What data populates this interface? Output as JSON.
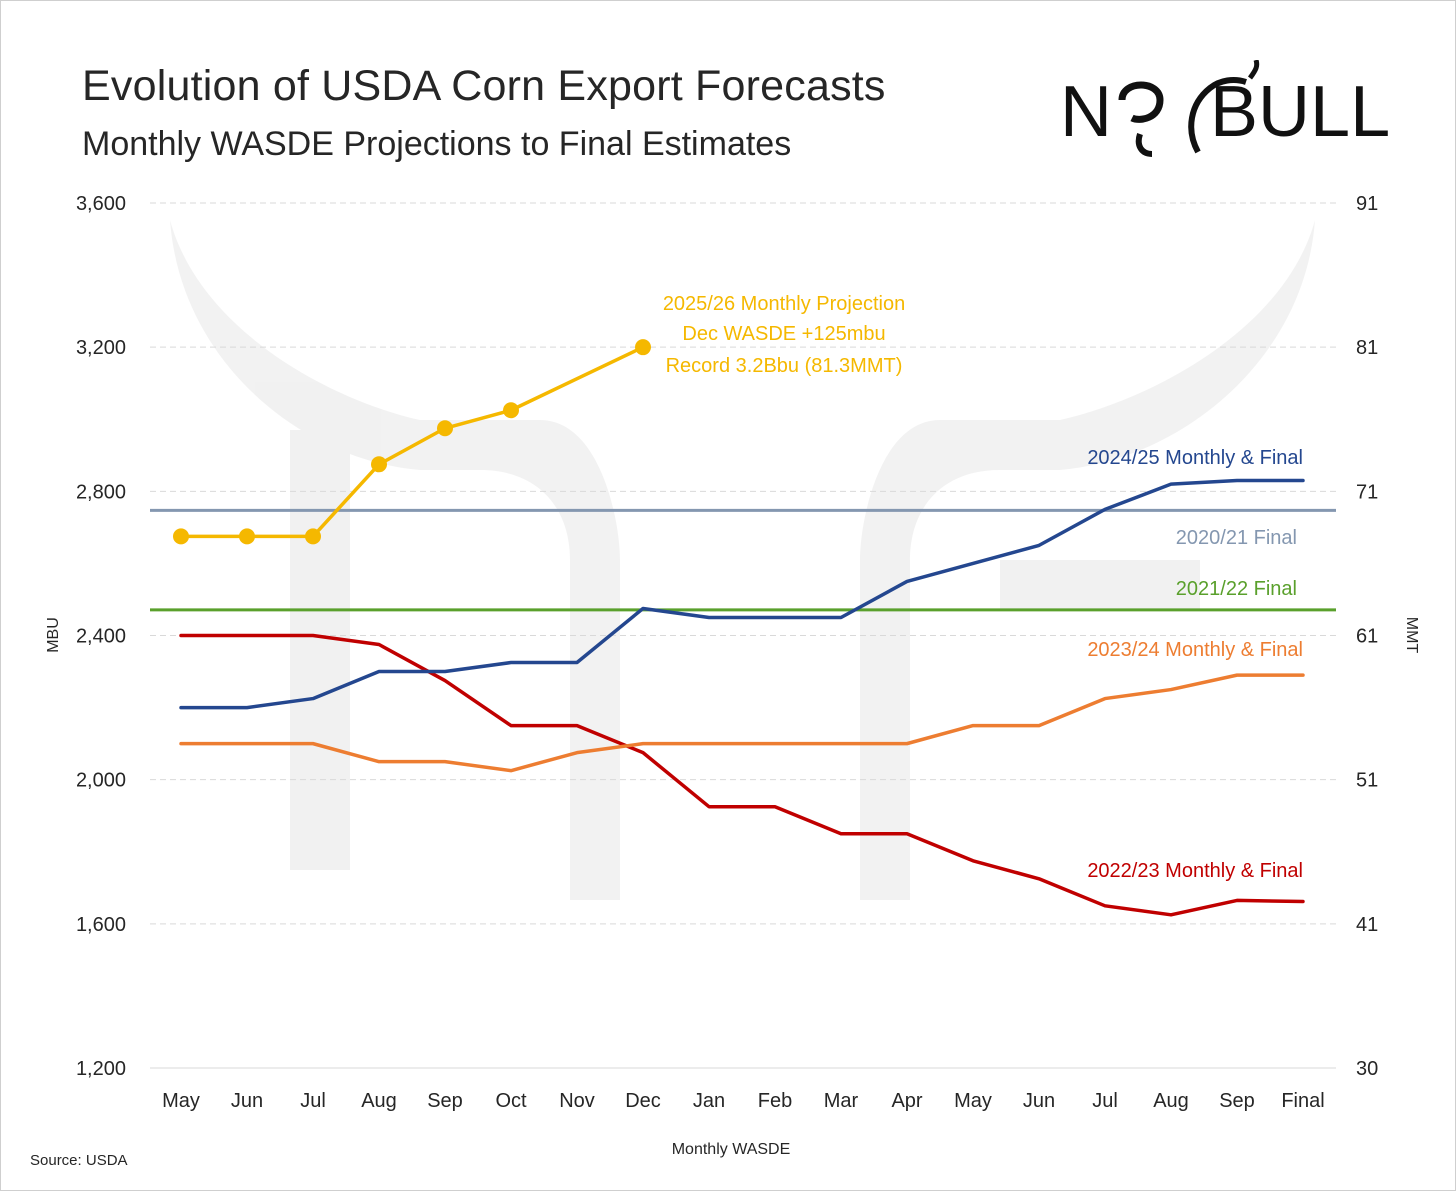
{
  "title": "Evolution of USDA Corn Export Forecasts",
  "subtitle": "Monthly WASDE Projections to Final Estimates",
  "logo": {
    "text": "NO BULL"
  },
  "source": "Source: USDA",
  "colors": {
    "s2025": "#F5B800",
    "s2024": "#24478F",
    "s2023": "#ED7D31",
    "s2022": "#C00000",
    "f2020": "#8497B0",
    "f2021": "#5AA02C",
    "grid": "#D9D9D9",
    "text": "#262626"
  },
  "chart_data": {
    "type": "line",
    "title": "Evolution of USDA Corn Export Forecasts",
    "xlabel": "Monthly WASDE",
    "ylabel": "MBU",
    "y2label": "MMT",
    "ylim": [
      1200,
      3600
    ],
    "yticks": [
      "1,200",
      "1,600",
      "2,000",
      "2,400",
      "2,800",
      "3,200",
      "3,600"
    ],
    "yticks_values": [
      1200,
      1600,
      2000,
      2400,
      2800,
      3200,
      3600
    ],
    "y2ticks": [
      "30",
      "41",
      "51",
      "61",
      "71",
      "81",
      "91"
    ],
    "categories": [
      "May",
      "Jun",
      "Jul",
      "Aug",
      "Sep",
      "Oct",
      "Nov",
      "Dec",
      "Jan",
      "Feb",
      "Mar",
      "Apr",
      "May",
      "Jun",
      "Jul",
      "Aug",
      "Sep",
      "Final"
    ],
    "series": [
      {
        "key": "s2025",
        "name": "2025/26 Monthly Projection",
        "markers": true,
        "values": [
          2675,
          2675,
          2675,
          2875,
          2975,
          3025,
          null,
          3200,
          null,
          null,
          null,
          null,
          null,
          null,
          null,
          null,
          null,
          null
        ]
      },
      {
        "key": "s2024",
        "name": "2024/25 Monthly & Final",
        "markers": false,
        "values": [
          2200,
          2200,
          2225,
          2300,
          2300,
          2325,
          2325,
          2475,
          2450,
          2450,
          2450,
          2550,
          2600,
          2650,
          2750,
          2820,
          2830,
          2830
        ]
      },
      {
        "key": "s2023",
        "name": "2023/24 Monthly & Final",
        "markers": false,
        "values": [
          2100,
          2100,
          2100,
          2050,
          2050,
          2025,
          2075,
          2100,
          2100,
          2100,
          2100,
          2100,
          2150,
          2150,
          2225,
          2250,
          2290,
          2290
        ]
      },
      {
        "key": "s2022",
        "name": "2022/23 Monthly & Final",
        "markers": false,
        "values": [
          2400,
          2400,
          2400,
          2375,
          2275,
          2150,
          2150,
          2075,
          1925,
          1925,
          1850,
          1850,
          1775,
          1725,
          1650,
          1625,
          1665,
          1662
        ]
      }
    ],
    "reference_lines": [
      {
        "key": "f2020",
        "name": "2020/21 Final",
        "value": 2747
      },
      {
        "key": "f2021",
        "name": "2021/22 Final",
        "value": 2471
      }
    ],
    "annotations": {
      "a2025": [
        "2025/26 Monthly Projection",
        "Dec WASDE +125mbu",
        "Record 3.2Bbu (81.3MMT)"
      ]
    }
  }
}
